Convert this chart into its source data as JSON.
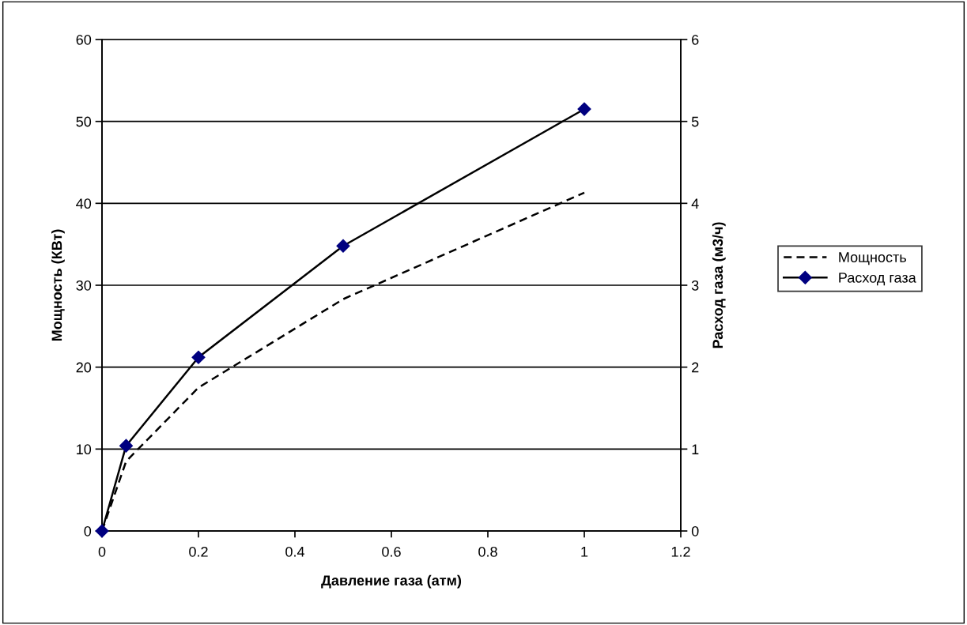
{
  "chart_data": {
    "type": "line",
    "xlabel": "Давление газа (атм)",
    "ylabel": "Мощность (КВт)",
    "y2label": "Расход газа (м3/ч)",
    "x": [
      0,
      0.05,
      0.2,
      0.5,
      1
    ],
    "series": [
      {
        "name": "Мощность",
        "color": "#000000",
        "line_style": "dashed",
        "marker": "none",
        "values": [
          0,
          8.5,
          17.5,
          28.3,
          41.3
        ]
      },
      {
        "name": "Расход газа",
        "color": "#000080",
        "line_style": "solid",
        "marker": "diamond",
        "axis": "y2",
        "values": [
          0,
          1.04,
          2.12,
          3.48,
          5.15
        ]
      }
    ],
    "xlim": [
      0,
      1.2
    ],
    "xticks": [
      0,
      0.2,
      0.4,
      0.6,
      0.8,
      1,
      1.2
    ],
    "ylim": [
      0,
      60
    ],
    "yticks": [
      0,
      10,
      20,
      30,
      40,
      50,
      60
    ],
    "y2lim": [
      0,
      6
    ],
    "y2ticks": [
      0,
      1,
      2,
      3,
      4,
      5,
      6
    ],
    "grid": "y",
    "legend": "right"
  }
}
